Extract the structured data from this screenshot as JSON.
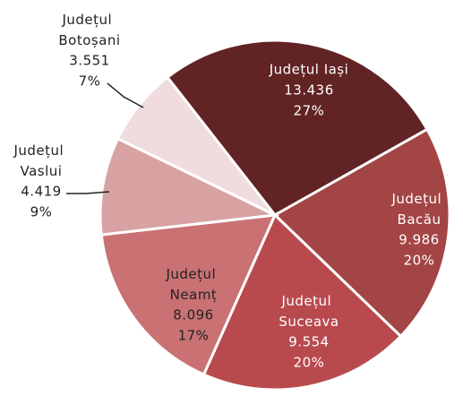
{
  "chart_data": {
    "type": "pie",
    "categories": [
      "Județul Iași",
      "Județul Bacău",
      "Județul Suceava",
      "Județul Neamț",
      "Județul Vaslui",
      "Județul Botoșani"
    ],
    "values": [
      13436,
      9986,
      9554,
      8096,
      4419,
      3551
    ],
    "value_labels": [
      "13.436",
      "9.986",
      "9.554",
      "8.096",
      "4.419",
      "3.551"
    ],
    "percentages": [
      27,
      20,
      20,
      17,
      9,
      7
    ],
    "percent_labels": [
      "27%",
      "20%",
      "20%",
      "17%",
      "9%",
      "7%"
    ],
    "colors": [
      "#622325",
      "#a34545",
      "#b84a4e",
      "#c97173",
      "#d8a2a3",
      "#f0dcdd"
    ]
  }
}
